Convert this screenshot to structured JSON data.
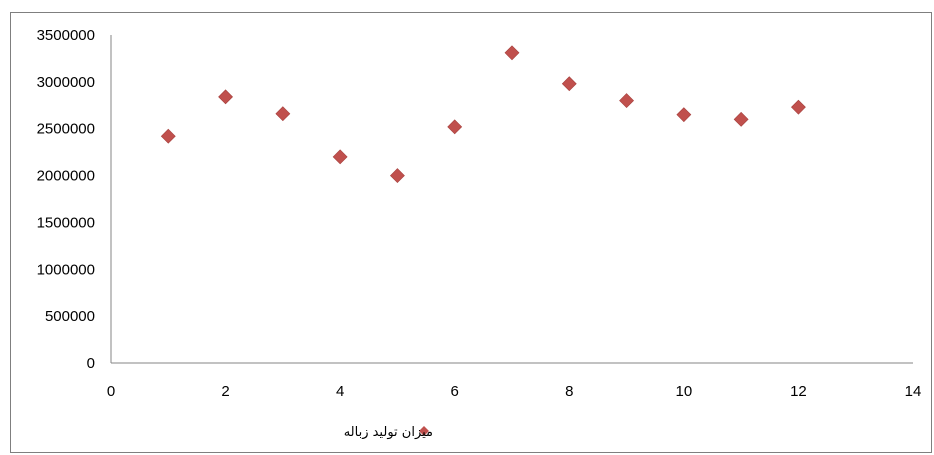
{
  "chart_data": {
    "type": "scatter",
    "title": "",
    "xlabel": "",
    "ylabel": "",
    "xlim": [
      0,
      14
    ],
    "ylim": [
      0,
      3500000
    ],
    "x_ticks": [
      "0",
      "2",
      "4",
      "6",
      "8",
      "10",
      "12",
      "14"
    ],
    "y_ticks": [
      "0",
      "500000",
      "1000000",
      "1500000",
      "2000000",
      "2500000",
      "3000000",
      "3500000"
    ],
    "grid": false,
    "legend_position": "bottom",
    "series": [
      {
        "name": "میزان تولید زباله",
        "color": "#c0504d",
        "marker": "diamond",
        "points": [
          {
            "x": 1,
            "y": 2420000
          },
          {
            "x": 2,
            "y": 2840000
          },
          {
            "x": 3,
            "y": 2660000
          },
          {
            "x": 4,
            "y": 2200000
          },
          {
            "x": 5,
            "y": 2000000
          },
          {
            "x": 6,
            "y": 2520000
          },
          {
            "x": 7,
            "y": 3310000
          },
          {
            "x": 8,
            "y": 2980000
          },
          {
            "x": 9,
            "y": 2800000
          },
          {
            "x": 10,
            "y": 2650000
          },
          {
            "x": 11,
            "y": 2600000
          },
          {
            "x": 12,
            "y": 2730000
          }
        ]
      }
    ]
  }
}
